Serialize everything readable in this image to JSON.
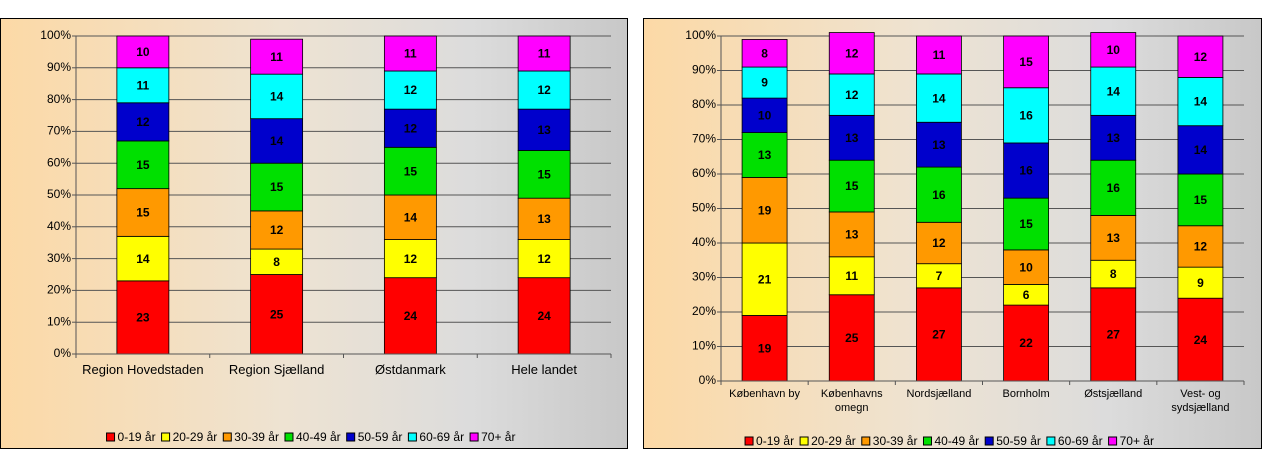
{
  "chart_data": [
    {
      "type": "stacked_bar",
      "categories": [
        "Region Hovedstaden",
        "Region Sjælland",
        "Østdanmark",
        "Hele landet"
      ],
      "ylim": [
        0,
        100
      ],
      "yticks": [
        {
          "value": 0,
          "label": "0%"
        },
        {
          "value": 10,
          "label": "10%"
        },
        {
          "value": 20,
          "label": "20%"
        },
        {
          "value": 30,
          "label": "30%"
        },
        {
          "value": 40,
          "label": "40%"
        },
        {
          "value": 50,
          "label": "50%"
        },
        {
          "value": 60,
          "label": "60%"
        },
        {
          "value": 70,
          "label": "70%"
        },
        {
          "value": 80,
          "label": "80%"
        },
        {
          "value": 90,
          "label": "90%"
        },
        {
          "value": 100,
          "label": "100%"
        }
      ],
      "grid": true,
      "series": [
        {
          "name": "0-19 år",
          "color": "#ff0000",
          "values": [
            23,
            25,
            24,
            24
          ]
        },
        {
          "name": "20-29 år",
          "color": "#ffff00",
          "values": [
            14,
            8,
            12,
            12
          ]
        },
        {
          "name": "30-39 år",
          "color": "#ff9900",
          "values": [
            15,
            12,
            14,
            13
          ]
        },
        {
          "name": "40-49 år",
          "color": "#00e000",
          "values": [
            15,
            15,
            15,
            15
          ]
        },
        {
          "name": "50-59 år",
          "color": "#0000cc",
          "values": [
            12,
            14,
            12,
            13
          ]
        },
        {
          "name": "60-69 år",
          "color": "#00ffff",
          "values": [
            11,
            14,
            12,
            12
          ]
        },
        {
          "name": "70+ år",
          "color": "#ff00ff",
          "values": [
            10,
            11,
            11,
            11
          ]
        }
      ]
    },
    {
      "type": "stacked_bar",
      "categories": [
        "København by",
        "Københavns omegn",
        "Nordsjælland",
        "Bornholm",
        "Østsjælland",
        "Vest- og sydsjælland"
      ],
      "ylim": [
        0,
        100
      ],
      "yticks": [
        {
          "value": 0,
          "label": "0%"
        },
        {
          "value": 10,
          "label": "10%"
        },
        {
          "value": 20,
          "label": "20%"
        },
        {
          "value": 30,
          "label": "30%"
        },
        {
          "value": 40,
          "label": "40%"
        },
        {
          "value": 50,
          "label": "50%"
        },
        {
          "value": 60,
          "label": "60%"
        },
        {
          "value": 70,
          "label": "70%"
        },
        {
          "value": 80,
          "label": "80%"
        },
        {
          "value": 90,
          "label": "90%"
        },
        {
          "value": 100,
          "label": "100%"
        }
      ],
      "grid": true,
      "series": [
        {
          "name": "0-19 år",
          "color": "#ff0000",
          "values": [
            19,
            25,
            27,
            22,
            27,
            24
          ]
        },
        {
          "name": "20-29 år",
          "color": "#ffff00",
          "values": [
            21,
            11,
            7,
            6,
            8,
            9
          ]
        },
        {
          "name": "30-39 år",
          "color": "#ff9900",
          "values": [
            19,
            13,
            12,
            10,
            13,
            12
          ]
        },
        {
          "name": "40-49 år",
          "color": "#00e000",
          "values": [
            13,
            15,
            16,
            15,
            16,
            15
          ]
        },
        {
          "name": "50-59 år",
          "color": "#0000cc",
          "values": [
            10,
            13,
            13,
            16,
            13,
            14
          ]
        },
        {
          "name": "60-69 år",
          "color": "#00ffff",
          "values": [
            9,
            12,
            14,
            16,
            14,
            14
          ]
        },
        {
          "name": "70+ år",
          "color": "#ff00ff",
          "values": [
            8,
            12,
            11,
            15,
            10,
            12
          ]
        }
      ]
    }
  ]
}
